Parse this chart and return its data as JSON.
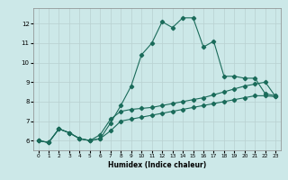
{
  "xlabel": "Humidex (Indice chaleur)",
  "bg_color": "#cce8e8",
  "line_color": "#1a6b5a",
  "grid_color": "#b8d0d0",
  "xlim": [
    -0.5,
    23.5
  ],
  "ylim": [
    5.5,
    12.8
  ],
  "xticks": [
    0,
    1,
    2,
    3,
    4,
    5,
    6,
    7,
    8,
    9,
    10,
    11,
    12,
    13,
    14,
    15,
    16,
    17,
    18,
    19,
    20,
    21,
    22,
    23
  ],
  "yticks": [
    6,
    7,
    8,
    9,
    10,
    11,
    12
  ],
  "series1_x": [
    0,
    1,
    2,
    3,
    4,
    5,
    6,
    7,
    8,
    9,
    10,
    11,
    12,
    13,
    14,
    15,
    16,
    17,
    18,
    19,
    20,
    21,
    22,
    23
  ],
  "series1_y": [
    6.0,
    5.9,
    6.6,
    6.4,
    6.1,
    6.0,
    6.1,
    6.9,
    7.8,
    8.8,
    10.4,
    11.0,
    12.1,
    11.8,
    12.3,
    12.3,
    10.8,
    11.1,
    9.3,
    9.3,
    9.2,
    9.2,
    8.4,
    8.3
  ],
  "series2_x": [
    0,
    1,
    2,
    3,
    4,
    5,
    6,
    7,
    8,
    9,
    10,
    11,
    12,
    13,
    14,
    15,
    16,
    17,
    18,
    19,
    20,
    21,
    22,
    23
  ],
  "series2_y": [
    6.0,
    5.9,
    6.6,
    6.4,
    6.1,
    6.0,
    6.3,
    7.1,
    7.5,
    7.6,
    7.65,
    7.7,
    7.8,
    7.9,
    8.0,
    8.1,
    8.2,
    8.35,
    8.5,
    8.65,
    8.8,
    8.9,
    9.0,
    8.25
  ],
  "series3_x": [
    0,
    1,
    2,
    3,
    4,
    5,
    6,
    7,
    8,
    9,
    10,
    11,
    12,
    13,
    14,
    15,
    16,
    17,
    18,
    19,
    20,
    21,
    22,
    23
  ],
  "series3_y": [
    6.0,
    5.9,
    6.6,
    6.4,
    6.1,
    6.0,
    6.1,
    6.5,
    7.0,
    7.1,
    7.2,
    7.3,
    7.4,
    7.5,
    7.6,
    7.7,
    7.8,
    7.9,
    8.0,
    8.1,
    8.2,
    8.3,
    8.3,
    8.25
  ]
}
